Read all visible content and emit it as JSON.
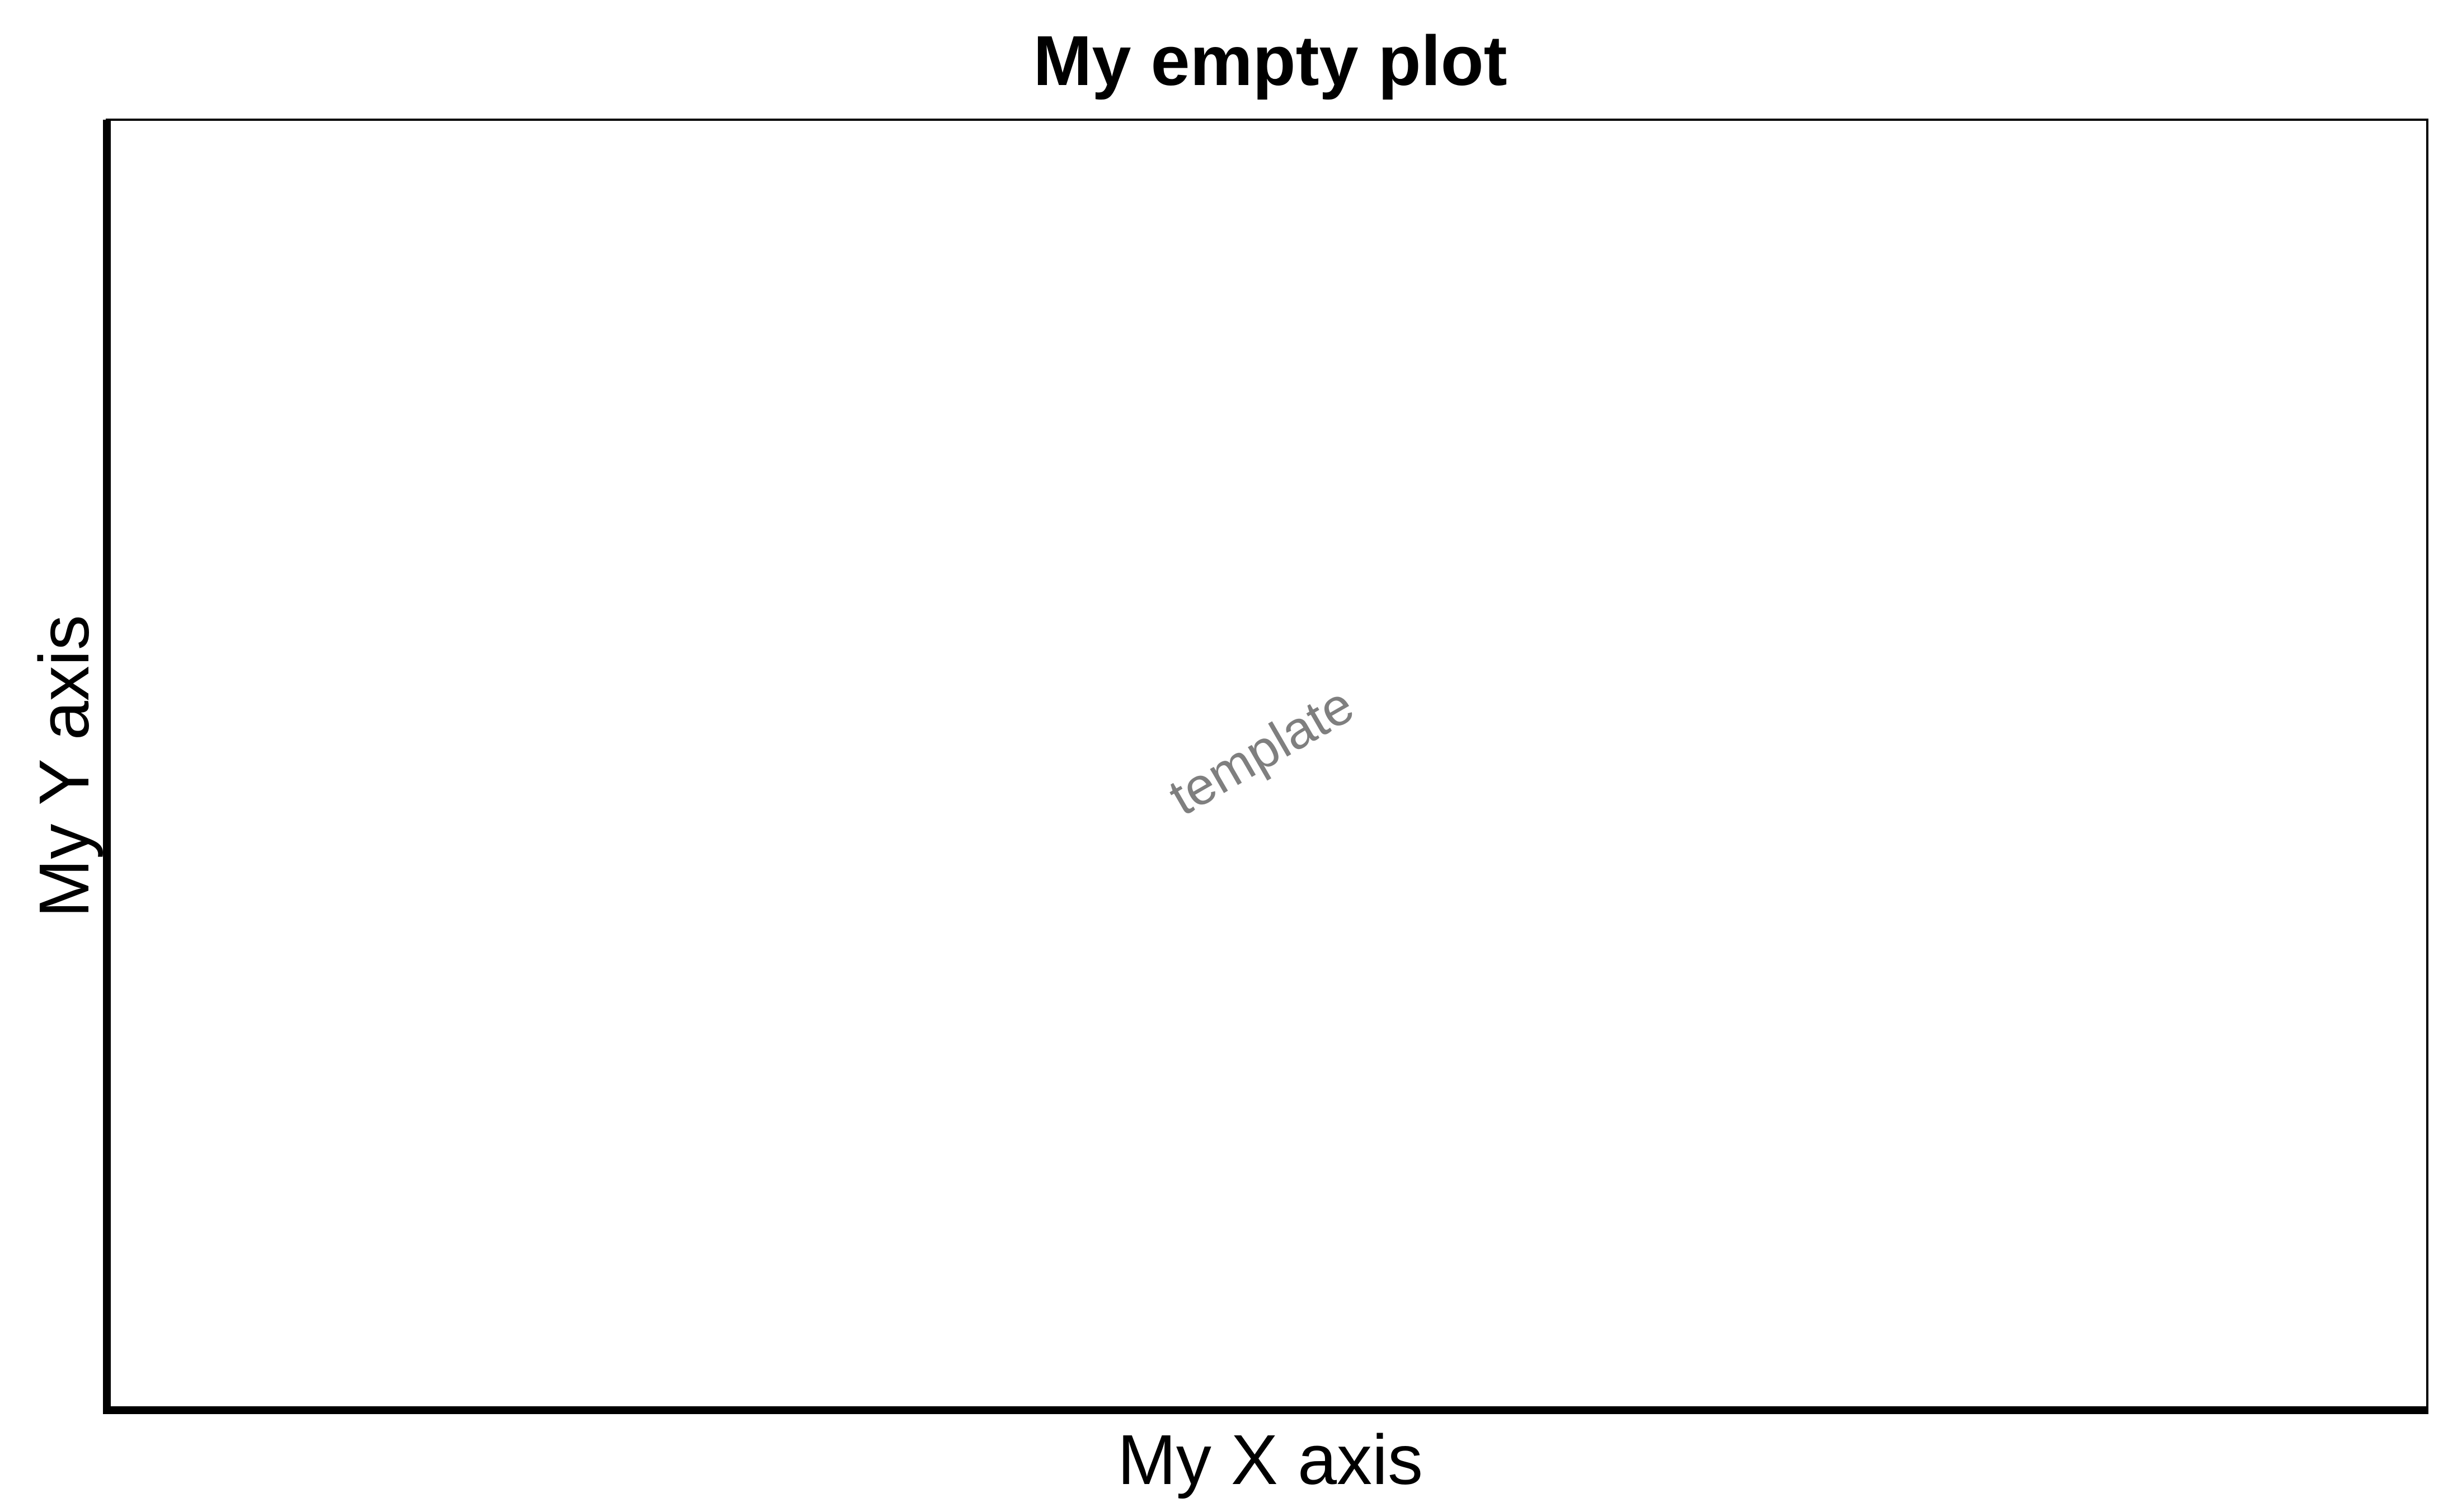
{
  "chart_data": {
    "type": "scatter",
    "title": "My empty plot",
    "xlabel": "My X axis",
    "ylabel": "My Y axis",
    "series": [],
    "grid": false,
    "annotations": [
      {
        "text": "template",
        "color": "#7f7f7f"
      }
    ]
  }
}
